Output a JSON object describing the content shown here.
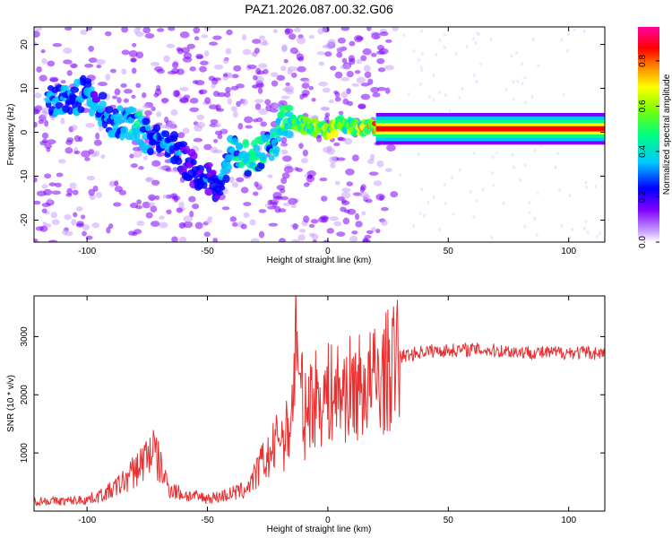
{
  "chart_data": [
    {
      "type": "heatmap",
      "title": "PAZ1.2026.087.00.32.G06",
      "xlabel": "Height of straight line (km)",
      "ylabel": "Frequency (Hz)",
      "xlim": [
        -122,
        115
      ],
      "ylim": [
        -25,
        24
      ],
      "xticks": [
        -100,
        -50,
        0,
        50,
        100
      ],
      "yticks": [
        -20,
        -10,
        0,
        10,
        20
      ],
      "colorbar": {
        "label": "Normalized spectral amplitude",
        "range": [
          0.0,
          0.95
        ],
        "ticks": [
          0.0,
          0.2,
          0.4,
          0.6,
          0.8
        ],
        "tick_labels": [
          "0.0",
          "0.2",
          "0.4",
          "0.6",
          "0.8"
        ],
        "colors": [
          "#ffffff",
          "#b060ff",
          "#0000ff",
          "#00ffff",
          "#00ff00",
          "#ffff00",
          "#ff8000",
          "#ff0000",
          "#ff00a0"
        ]
      },
      "ridge": [
        {
          "x": -110,
          "y": 7,
          "amp": 0.3
        },
        {
          "x": -100,
          "y": 9,
          "amp": 0.25
        },
        {
          "x": -90,
          "y": 3,
          "amp": 0.3
        },
        {
          "x": -80,
          "y": 2,
          "amp": 0.35
        },
        {
          "x": -75,
          "y": -1,
          "amp": 0.3
        },
        {
          "x": -65,
          "y": -3,
          "amp": 0.25
        },
        {
          "x": -55,
          "y": -9,
          "amp": 0.2
        },
        {
          "x": -45,
          "y": -12,
          "amp": 0.25
        },
        {
          "x": -40,
          "y": -4,
          "amp": 0.35
        },
        {
          "x": -33,
          "y": -6,
          "amp": 0.45
        },
        {
          "x": -28,
          "y": -5,
          "amp": 0.4
        },
        {
          "x": -22,
          "y": -2,
          "amp": 0.4
        },
        {
          "x": -18,
          "y": 3,
          "amp": 0.45
        },
        {
          "x": -12,
          "y": 2,
          "amp": 0.5
        },
        {
          "x": -5,
          "y": 1,
          "amp": 0.55
        },
        {
          "x": 0,
          "y": 0,
          "amp": 0.6
        },
        {
          "x": 5,
          "y": 2,
          "amp": 0.55
        },
        {
          "x": 10,
          "y": 1,
          "amp": 0.6
        },
        {
          "x": 20,
          "y": 1,
          "amp": 0.75
        },
        {
          "x": 40,
          "y": 0.8,
          "amp": 0.85
        },
        {
          "x": 60,
          "y": 0.8,
          "amp": 0.9
        },
        {
          "x": 80,
          "y": 0.8,
          "amp": 0.9
        },
        {
          "x": 95,
          "y": 0.5,
          "amp": 0.85
        },
        {
          "x": 115,
          "y": 0.8,
          "amp": 0.9
        }
      ]
    },
    {
      "type": "line",
      "title": "",
      "xlabel": "Height of straight line (km)",
      "ylabel": "SNR (10 * v/v)",
      "xlim": [
        -122,
        115
      ],
      "ylim": [
        0,
        3700
      ],
      "xticks": [
        -100,
        -50,
        0,
        50,
        100
      ],
      "yticks": [
        1000,
        2000,
        3000
      ],
      "series": [
        {
          "name": "SNR",
          "color": "#e83030",
          "x": [
            -122,
            -110,
            -100,
            -95,
            -90,
            -85,
            -80,
            -76,
            -73,
            -70,
            -66,
            -60,
            -55,
            -50,
            -45,
            -40,
            -35,
            -32,
            -30,
            -28,
            -25,
            -22,
            -20,
            -18,
            -16,
            -14,
            -13,
            -12,
            -11,
            -10,
            -8,
            -5,
            0,
            5,
            10,
            15,
            20,
            25,
            28,
            30,
            35,
            40,
            50,
            60,
            70,
            80,
            90,
            100,
            110,
            115
          ],
          "y": [
            180,
            170,
            200,
            260,
            350,
            500,
            700,
            900,
            1100,
            800,
            400,
            280,
            250,
            220,
            250,
            300,
            350,
            500,
            600,
            800,
            900,
            1100,
            1400,
            1200,
            1500,
            2100,
            3600,
            1800,
            2200,
            1500,
            1900,
            1950,
            2000,
            2050,
            2100,
            2150,
            2250,
            2400,
            2550,
            2650,
            2700,
            2750,
            2760,
            2780,
            2760,
            2740,
            2720,
            2730,
            2720,
            2710
          ]
        }
      ]
    }
  ]
}
